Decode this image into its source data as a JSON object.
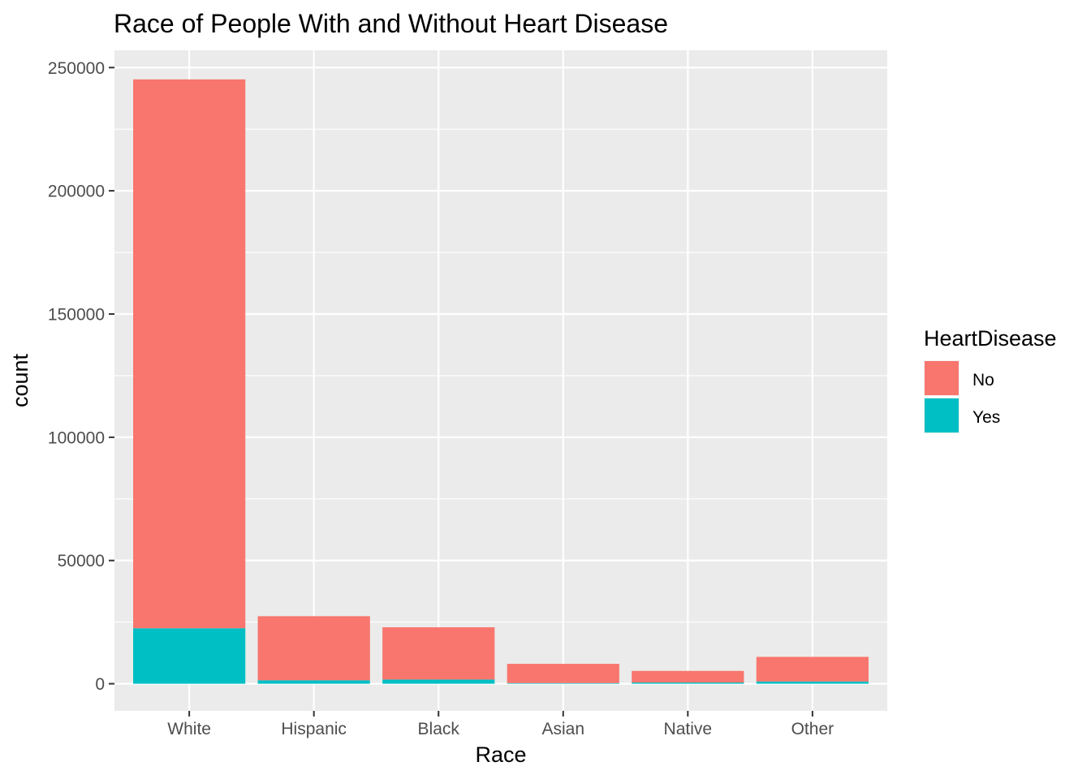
{
  "chart_data": {
    "type": "bar",
    "stacked": true,
    "title": "Race of People With and Without Heart Disease",
    "xlabel": "Race",
    "ylabel": "count",
    "categories": [
      "White",
      "Hispanic",
      "Black",
      "Asian",
      "Native",
      "Other"
    ],
    "series": [
      {
        "name": "No",
        "color": "#F8766D",
        "values": [
          222700,
          26000,
          21200,
          7800,
          4700,
          10000
        ]
      },
      {
        "name": "Yes",
        "color": "#00BFC4",
        "values": [
          22500,
          1400,
          1700,
          270,
          500,
          900
        ]
      }
    ],
    "ylim": [
      -11000,
      257000
    ],
    "yticks": [
      0,
      50000,
      100000,
      150000,
      200000,
      250000
    ],
    "ytick_labels": [
      "0",
      "50000",
      "100000",
      "150000",
      "200000",
      "250000"
    ],
    "legend": {
      "title": "HeartDisease",
      "position": "right"
    },
    "grid": true,
    "panel_background": "#EBEBEB"
  }
}
